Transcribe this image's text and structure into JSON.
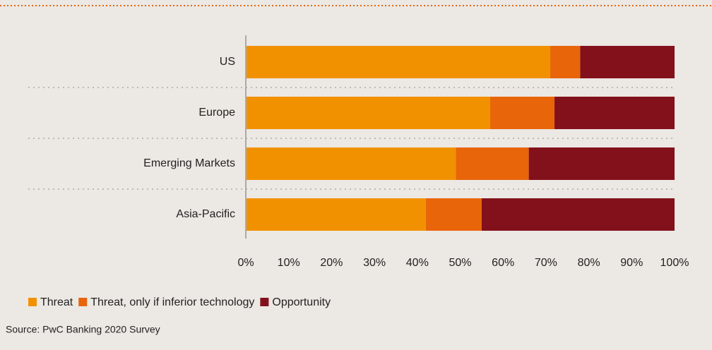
{
  "chart_data": {
    "type": "stacked_barh",
    "categories": [
      "US",
      "Europe",
      "Emerging Markets",
      "Asia-Pacific"
    ],
    "series": [
      {
        "name": "Threat",
        "color": "#f29100",
        "values": [
          71,
          57,
          49,
          42
        ]
      },
      {
        "name": "Threat, only if inferior technology",
        "color": "#e8650a",
        "values": [
          7,
          15,
          17,
          13
        ]
      },
      {
        "name": "Opportunity",
        "color": "#82111b",
        "values": [
          22,
          28,
          34,
          45
        ]
      }
    ],
    "xlim": [
      0,
      100
    ],
    "xticks": [
      {
        "value": 0,
        "label": "0%"
      },
      {
        "value": 10,
        "label": "10%"
      },
      {
        "value": 20,
        "label": "20%"
      },
      {
        "value": 30,
        "label": "30%"
      },
      {
        "value": 40,
        "label": "40%"
      },
      {
        "value": 50,
        "label": "50%"
      },
      {
        "value": 60,
        "label": "60%"
      },
      {
        "value": 70,
        "label": "70%"
      },
      {
        "value": 80,
        "label": "80%"
      },
      {
        "value": 90,
        "label": "90%"
      },
      {
        "value": 100,
        "label": "100%"
      }
    ],
    "source": "Source: PwC Banking 2020 Survey"
  }
}
